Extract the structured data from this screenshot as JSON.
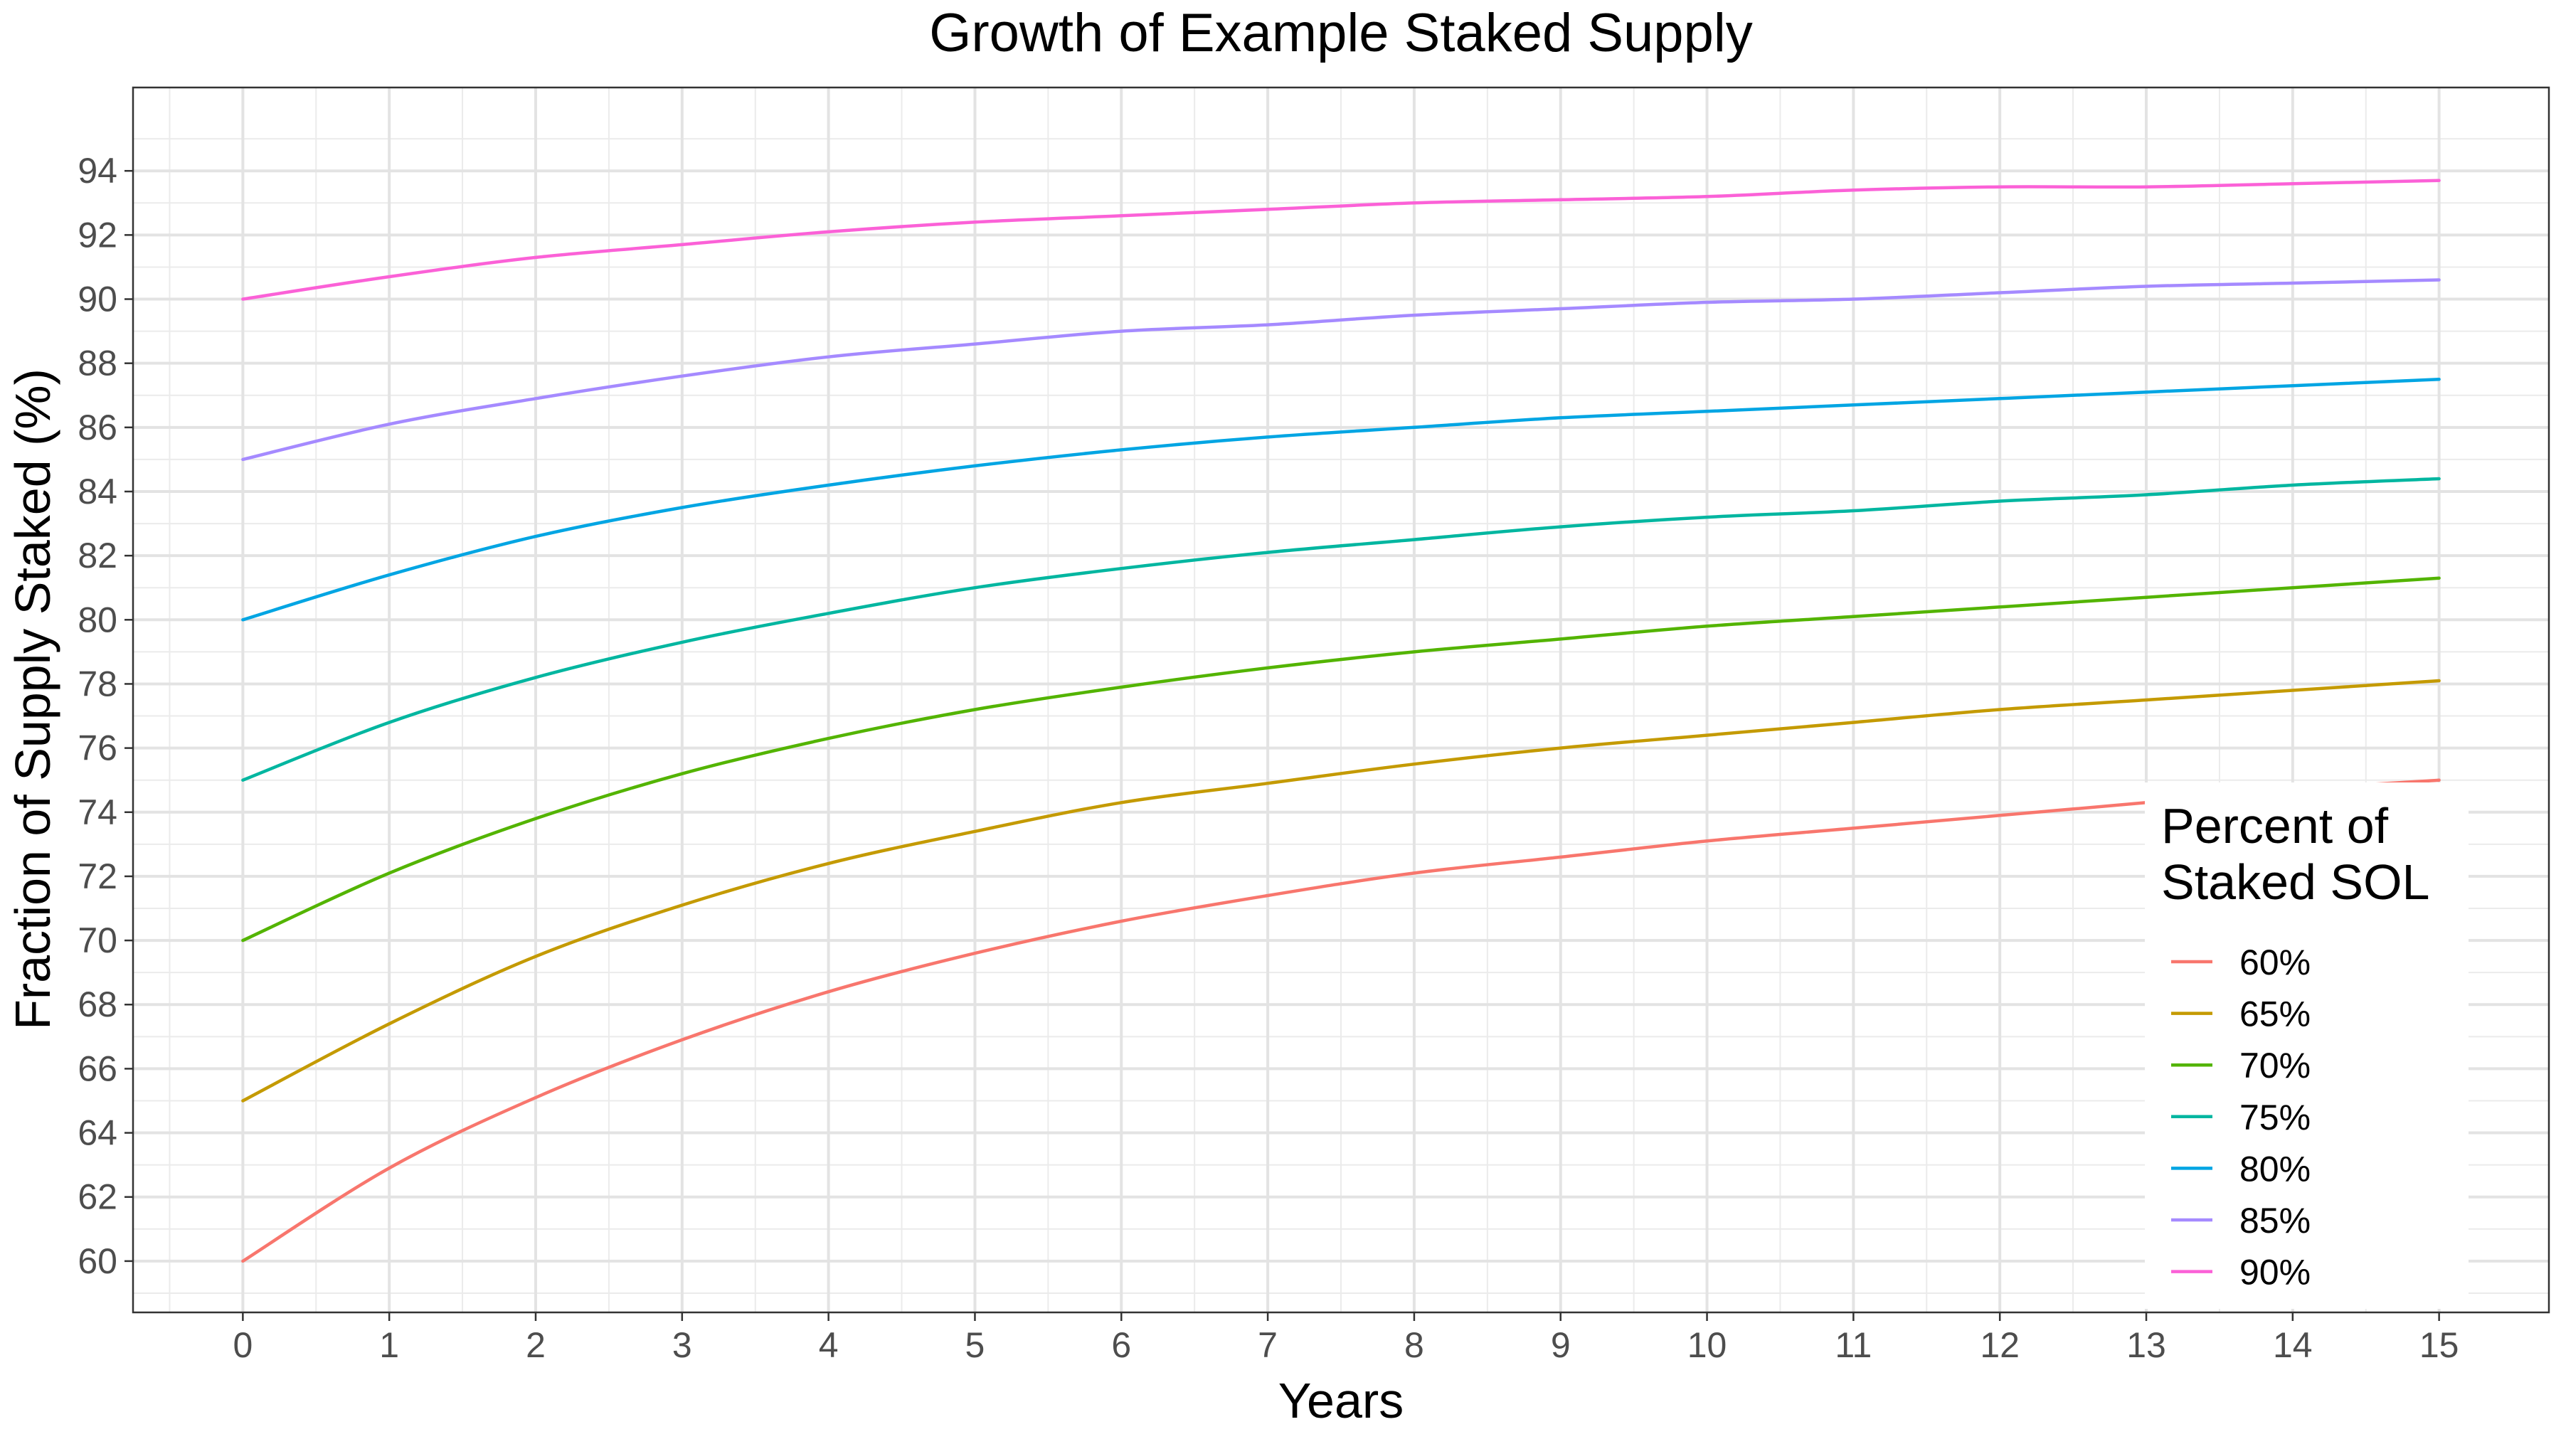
{
  "chart_data": {
    "type": "line",
    "title": "Growth of Example Staked Supply",
    "xlabel": "Years",
    "ylabel": "Fraction of Supply Staked (%)",
    "xlim": [
      -0.75,
      15.75
    ],
    "ylim": [
      58.4,
      96.6
    ],
    "x_ticks": [
      0,
      1,
      2,
      3,
      4,
      5,
      6,
      7,
      8,
      9,
      10,
      11,
      12,
      13,
      14,
      15
    ],
    "y_ticks": [
      60,
      62,
      64,
      66,
      68,
      70,
      72,
      74,
      76,
      78,
      80,
      82,
      84,
      86,
      88,
      90,
      92,
      94
    ],
    "grid": true,
    "legend": {
      "title_line1": "Percent of",
      "title_line2": "Staked SOL",
      "placement": "right"
    },
    "x": [
      0,
      1,
      2,
      3,
      4,
      5,
      6,
      7,
      8,
      9,
      10,
      11,
      12,
      13,
      14,
      15
    ],
    "series": [
      {
        "name": "60%",
        "color": "#F8766D",
        "values": [
          60.0,
          62.9,
          65.1,
          66.9,
          68.4,
          69.6,
          70.6,
          71.4,
          72.1,
          72.6,
          73.1,
          73.5,
          73.9,
          74.3,
          74.7,
          75.0
        ]
      },
      {
        "name": "65%",
        "color": "#C49A00",
        "values": [
          65.0,
          67.4,
          69.5,
          71.1,
          72.4,
          73.4,
          74.3,
          74.9,
          75.5,
          76.0,
          76.4,
          76.8,
          77.2,
          77.5,
          77.8,
          78.1
        ]
      },
      {
        "name": "70%",
        "color": "#53B400",
        "values": [
          70.0,
          72.1,
          73.8,
          75.2,
          76.3,
          77.2,
          77.9,
          78.5,
          79.0,
          79.4,
          79.8,
          80.1,
          80.4,
          80.7,
          81.0,
          81.3
        ]
      },
      {
        "name": "75%",
        "color": "#00B6A0",
        "values": [
          75.0,
          76.8,
          78.2,
          79.3,
          80.2,
          81.0,
          81.6,
          82.1,
          82.5,
          82.9,
          83.2,
          83.4,
          83.7,
          83.9,
          84.2,
          84.4
        ]
      },
      {
        "name": "80%",
        "color": "#00A5E3",
        "values": [
          80.0,
          81.4,
          82.6,
          83.5,
          84.2,
          84.8,
          85.3,
          85.7,
          86.0,
          86.3,
          86.5,
          86.7,
          86.9,
          87.1,
          87.3,
          87.5
        ]
      },
      {
        "name": "85%",
        "color": "#A58AFF",
        "values": [
          85.0,
          86.1,
          86.9,
          87.6,
          88.2,
          88.6,
          89.0,
          89.2,
          89.5,
          89.7,
          89.9,
          90.0,
          90.2,
          90.4,
          90.5,
          90.6
        ]
      },
      {
        "name": "90%",
        "color": "#FB61D7",
        "values": [
          90.0,
          90.7,
          91.3,
          91.7,
          92.1,
          92.4,
          92.6,
          92.8,
          93.0,
          93.1,
          93.2,
          93.4,
          93.5,
          93.5,
          93.6,
          93.7
        ]
      }
    ]
  }
}
